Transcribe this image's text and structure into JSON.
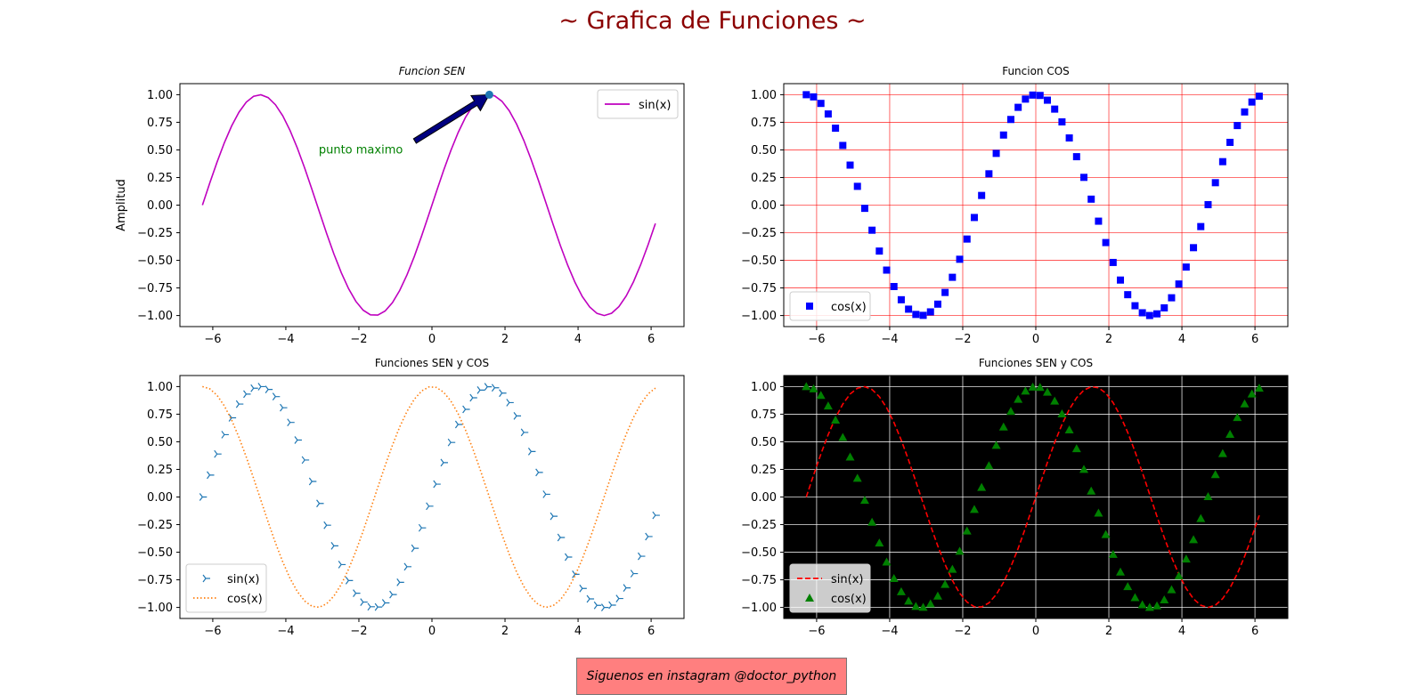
{
  "suptitle": "~ Grafica de Funciones ~",
  "footer_note": "Siguenos en instagram @doctor_python",
  "colors": {
    "suptitle": "#8b0000",
    "footer_bg": "#ff7f7f",
    "magenta": "#bf00bf",
    "blue": "#0000ff",
    "tab_blue": "#1f77b4",
    "tab_orange": "#ff7f0e",
    "red": "#ff0000",
    "green": "#008000",
    "dark_bg": "#000000",
    "annotation_text": "#008000",
    "annotation_arrow": "#000080"
  },
  "chart_data": [
    {
      "id": "p1",
      "type": "line",
      "title": "Funcion SEN",
      "title_style": "italic",
      "xlabel": "",
      "ylabel": "Amplitud",
      "xlim": [
        -6.9,
        6.9
      ],
      "ylim": [
        -1.1,
        1.1
      ],
      "xticks": [
        -6,
        -4,
        -2,
        0,
        2,
        4,
        6
      ],
      "xtick_labels": [
        "−6",
        "−4",
        "−2",
        "0",
        "2",
        "4",
        "6"
      ],
      "yticks": [
        -1.0,
        -0.75,
        -0.5,
        -0.25,
        0.0,
        0.25,
        0.5,
        0.75,
        1.0
      ],
      "ytick_labels": [
        "−1.00",
        "−0.75",
        "−0.50",
        "−0.25",
        "0.00",
        "0.25",
        "0.50",
        "0.75",
        "1.00"
      ],
      "grid": false,
      "background": "white",
      "x_range": [
        -6.2832,
        6.2832
      ],
      "n_points": 63,
      "series": [
        {
          "name": "sin(x)",
          "function": "sin",
          "style": "line",
          "color": "#bf00bf",
          "dash": ""
        }
      ],
      "legend": {
        "position": "upper right"
      },
      "annotation": {
        "text": "punto maximo",
        "point": [
          1.5708,
          1.0
        ],
        "text_at": [
          -3.1,
          0.5
        ]
      }
    },
    {
      "id": "p2",
      "type": "scatter",
      "title": "Funcion COS",
      "title_style": "normal",
      "xlabel": "",
      "ylabel": "",
      "xlim": [
        -6.9,
        6.9
      ],
      "ylim": [
        -1.1,
        1.1
      ],
      "xticks": [
        -6,
        -4,
        -2,
        0,
        2,
        4,
        6
      ],
      "xtick_labels": [
        "−6",
        "−4",
        "−2",
        "0",
        "2",
        "4",
        "6"
      ],
      "yticks": [
        -1.0,
        -0.75,
        -0.5,
        -0.25,
        0.0,
        0.25,
        0.5,
        0.75,
        1.0
      ],
      "ytick_labels": [
        "−1.00",
        "−0.75",
        "−0.50",
        "−0.25",
        "0.00",
        "0.25",
        "0.50",
        "0.75",
        "1.00"
      ],
      "grid": true,
      "grid_color": "#ff0000",
      "background": "white",
      "x_range": [
        -6.2832,
        6.2832
      ],
      "n_points": 63,
      "series": [
        {
          "name": "cos(x)",
          "function": "cos",
          "style": "marker",
          "marker": "square",
          "color": "#0000ff"
        }
      ],
      "legend": {
        "position": "lower left"
      }
    },
    {
      "id": "p3",
      "type": "line",
      "title": "Funciones SEN y COS",
      "title_style": "normal",
      "xlabel": "",
      "ylabel": "",
      "xlim": [
        -6.9,
        6.9
      ],
      "ylim": [
        -1.1,
        1.1
      ],
      "xticks": [
        -6,
        -4,
        -2,
        0,
        2,
        4,
        6
      ],
      "xtick_labels": [
        "−6",
        "−4",
        "−2",
        "0",
        "2",
        "4",
        "6"
      ],
      "yticks": [
        -1.0,
        -0.75,
        -0.5,
        -0.25,
        0.0,
        0.25,
        0.5,
        0.75,
        1.0
      ],
      "ytick_labels": [
        "−1.00",
        "−0.75",
        "−0.50",
        "−0.25",
        "0.00",
        "0.25",
        "0.50",
        "0.75",
        "1.00"
      ],
      "grid": false,
      "background": "white",
      "x_range": [
        -6.2832,
        6.2832
      ],
      "n_points": 63,
      "series": [
        {
          "name": "sin(x)",
          "function": "sin",
          "style": "marker",
          "marker": "tri_right",
          "color": "#1f77b4"
        },
        {
          "name": "cos(x)",
          "function": "cos",
          "style": "line",
          "color": "#ff7f0e",
          "dash": "1.5,2.5"
        }
      ],
      "legend": {
        "position": "lower left"
      }
    },
    {
      "id": "p4",
      "type": "line",
      "title": "Funciones SEN y COS",
      "title_style": "normal",
      "xlabel": "",
      "ylabel": "",
      "xlim": [
        -6.9,
        6.9
      ],
      "ylim": [
        -1.1,
        1.1
      ],
      "xticks": [
        -6,
        -4,
        -2,
        0,
        2,
        4,
        6
      ],
      "xtick_labels": [
        "−6",
        "−4",
        "−2",
        "0",
        "2",
        "4",
        "6"
      ],
      "yticks": [
        -1.0,
        -0.75,
        -0.5,
        -0.25,
        0.0,
        0.25,
        0.5,
        0.75,
        1.0
      ],
      "ytick_labels": [
        "−1.00",
        "−0.75",
        "−0.50",
        "−0.25",
        "0.00",
        "0.25",
        "0.50",
        "0.75",
        "1.00"
      ],
      "grid": true,
      "grid_color": "#ffffff",
      "background": "black",
      "x_range": [
        -6.2832,
        6.2832
      ],
      "n_points": 63,
      "series": [
        {
          "name": "sin(x)",
          "function": "sin",
          "style": "line",
          "color": "#ff0000",
          "dash": "6,3"
        },
        {
          "name": "cos(x)",
          "function": "cos",
          "style": "marker",
          "marker": "triangle",
          "color": "#008000"
        }
      ],
      "legend": {
        "position": "lower left"
      }
    }
  ]
}
